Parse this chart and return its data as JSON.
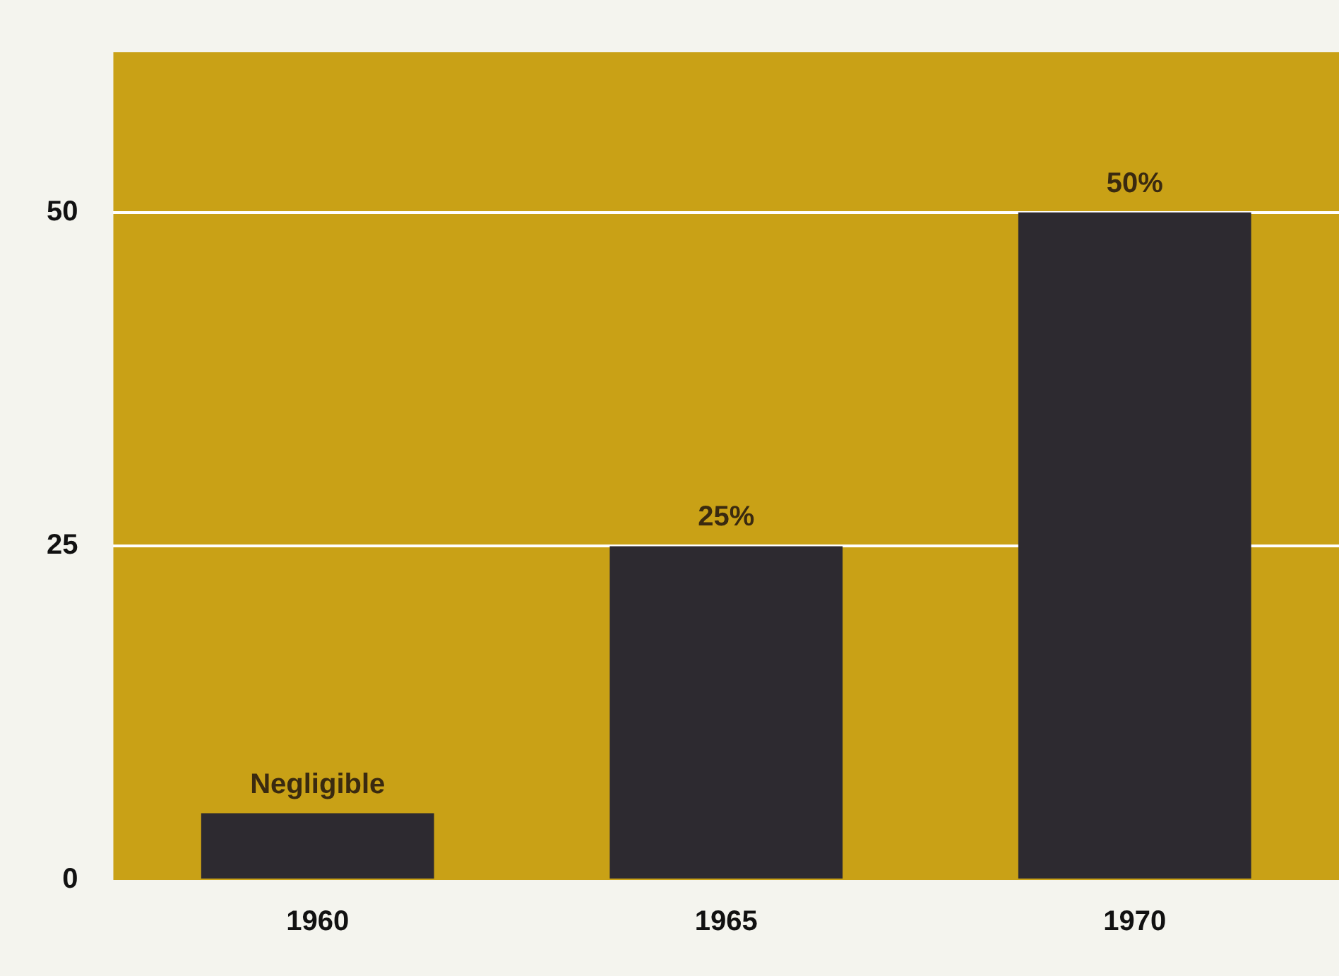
{
  "chart_data": {
    "type": "bar",
    "categories": [
      "1960",
      "1965",
      "1970"
    ],
    "values": [
      5,
      25,
      50
    ],
    "color": "#2d2a30",
    "value_labels": [
      "Negligible",
      "25%",
      "50%"
    ],
    "ylim": [
      0,
      62
    ],
    "yticks": [
      0,
      25,
      50
    ],
    "grid": "y",
    "legend": false
  }
}
